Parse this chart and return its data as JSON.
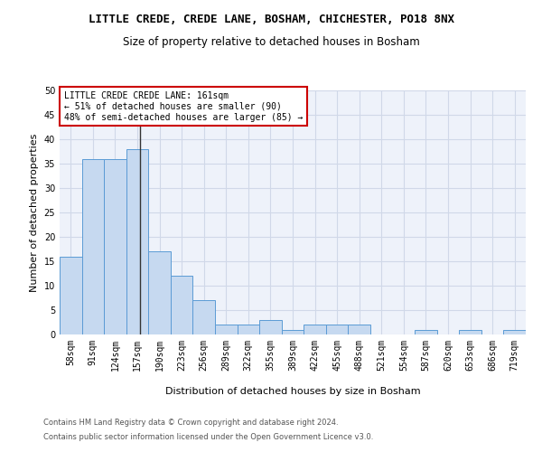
{
  "title": "LITTLE CREDE, CREDE LANE, BOSHAM, CHICHESTER, PO18 8NX",
  "subtitle": "Size of property relative to detached houses in Bosham",
  "xlabel": "Distribution of detached houses by size in Bosham",
  "ylabel": "Number of detached properties",
  "categories": [
    "58sqm",
    "91sqm",
    "124sqm",
    "157sqm",
    "190sqm",
    "223sqm",
    "256sqm",
    "289sqm",
    "322sqm",
    "355sqm",
    "389sqm",
    "422sqm",
    "455sqm",
    "488sqm",
    "521sqm",
    "554sqm",
    "587sqm",
    "620sqm",
    "653sqm",
    "686sqm",
    "719sqm"
  ],
  "values": [
    16,
    36,
    36,
    38,
    17,
    12,
    7,
    2,
    2,
    3,
    1,
    2,
    2,
    2,
    0,
    0,
    1,
    0,
    1,
    0,
    1
  ],
  "bar_color": "#c6d9f0",
  "bar_edge_color": "#5b9bd5",
  "annotation_box_text": "LITTLE CREDE CREDE LANE: 161sqm\n← 51% of detached houses are smaller (90)\n48% of semi-detached houses are larger (85) →",
  "ylim": [
    0,
    50
  ],
  "yticks": [
    0,
    5,
    10,
    15,
    20,
    25,
    30,
    35,
    40,
    45,
    50
  ],
  "footer_line1": "Contains HM Land Registry data © Crown copyright and database right 2024.",
  "footer_line2": "Contains public sector information licensed under the Open Government Licence v3.0.",
  "grid_color": "#d0d8e8",
  "background_color": "#eef2fa",
  "box_edge_color": "#cc0000",
  "title_fontsize": 9,
  "subtitle_fontsize": 8.5,
  "axis_label_fontsize": 8,
  "tick_fontsize": 7,
  "annotation_fontsize": 7,
  "footer_fontsize": 6
}
